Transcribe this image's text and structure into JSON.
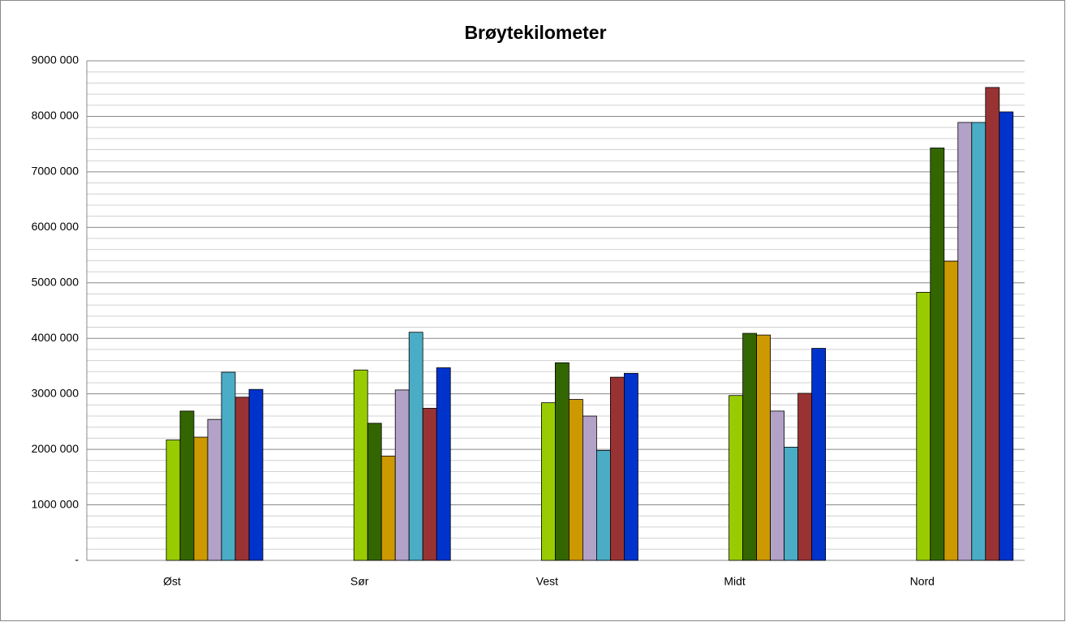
{
  "chart_data": {
    "type": "bar",
    "title": "Brøytekilometer",
    "categories": [
      "Øst",
      "Sør",
      "Vest",
      "Midt",
      "Nord"
    ],
    "series": [
      {
        "color": "#99cc00",
        "values": [
          2170000,
          3430000,
          2840000,
          2970000,
          4830000
        ]
      },
      {
        "color": "#336600",
        "values": [
          2690000,
          2470000,
          3560000,
          4090000,
          7430000
        ]
      },
      {
        "color": "#cc9900",
        "values": [
          2220000,
          1880000,
          2900000,
          4060000,
          5390000
        ]
      },
      {
        "color": "#b3a2c7",
        "values": [
          2540000,
          3070000,
          2600000,
          2690000,
          7890000
        ]
      },
      {
        "color": "#4bacc6",
        "values": [
          3390000,
          4110000,
          1980000,
          2040000,
          7890000
        ]
      },
      {
        "color": "#993333",
        "values": [
          2940000,
          2740000,
          3300000,
          3010000,
          8520000
        ]
      },
      {
        "color": "#0033cc",
        "values": [
          3080000,
          3470000,
          3370000,
          3820000,
          8080000
        ]
      }
    ],
    "ylim": [
      0,
      9000000
    ],
    "yticks": [
      {
        "value": 0,
        "label": "-"
      },
      {
        "value": 1000000,
        "label": "1000 000"
      },
      {
        "value": 2000000,
        "label": "2000 000"
      },
      {
        "value": 3000000,
        "label": "3000 000"
      },
      {
        "value": 4000000,
        "label": "4000 000"
      },
      {
        "value": 5000000,
        "label": "5000 000"
      },
      {
        "value": 6000000,
        "label": "6000 000"
      },
      {
        "value": 7000000,
        "label": "7000 000"
      },
      {
        "value": 8000000,
        "label": "8000 000"
      },
      {
        "value": 9000000,
        "label": "9000 000"
      }
    ],
    "grid": true
  }
}
